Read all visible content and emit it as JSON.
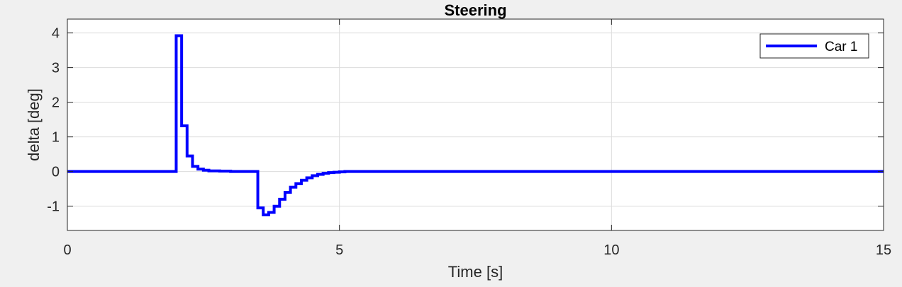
{
  "chart_data": {
    "type": "line",
    "title": "Steering",
    "xlabel": "Time [s]",
    "ylabel": "delta [deg]",
    "xlim": [
      0,
      15
    ],
    "ylim": [
      -1.7,
      4.4
    ],
    "xticks": [
      0,
      5,
      10,
      15
    ],
    "yticks": [
      -1,
      0,
      1,
      2,
      3,
      4
    ],
    "xtick_labels": [
      "0",
      "5",
      "10",
      "15"
    ],
    "ytick_labels": [
      "-1",
      "0",
      "1",
      "2",
      "3",
      "4"
    ],
    "grid": true,
    "legend_position": "top-right",
    "step": true,
    "series": [
      {
        "name": "Car 1",
        "color": "#0000ff",
        "x": [
          0,
          2.0,
          2.1,
          2.2,
          2.3,
          2.4,
          2.5,
          2.6,
          2.8,
          3.0,
          3.4,
          3.5,
          3.6,
          3.7,
          3.8,
          3.9,
          4.0,
          4.1,
          4.2,
          4.3,
          4.4,
          4.5,
          4.6,
          4.7,
          4.8,
          4.9,
          5.0,
          5.1,
          15
        ],
        "y": [
          0,
          3.92,
          1.32,
          0.45,
          0.15,
          0.07,
          0.04,
          0.02,
          0.01,
          0,
          0,
          -1.05,
          -1.25,
          -1.18,
          -1.0,
          -0.8,
          -0.6,
          -0.45,
          -0.35,
          -0.25,
          -0.18,
          -0.12,
          -0.08,
          -0.05,
          -0.03,
          -0.02,
          -0.01,
          0,
          0
        ]
      }
    ]
  }
}
